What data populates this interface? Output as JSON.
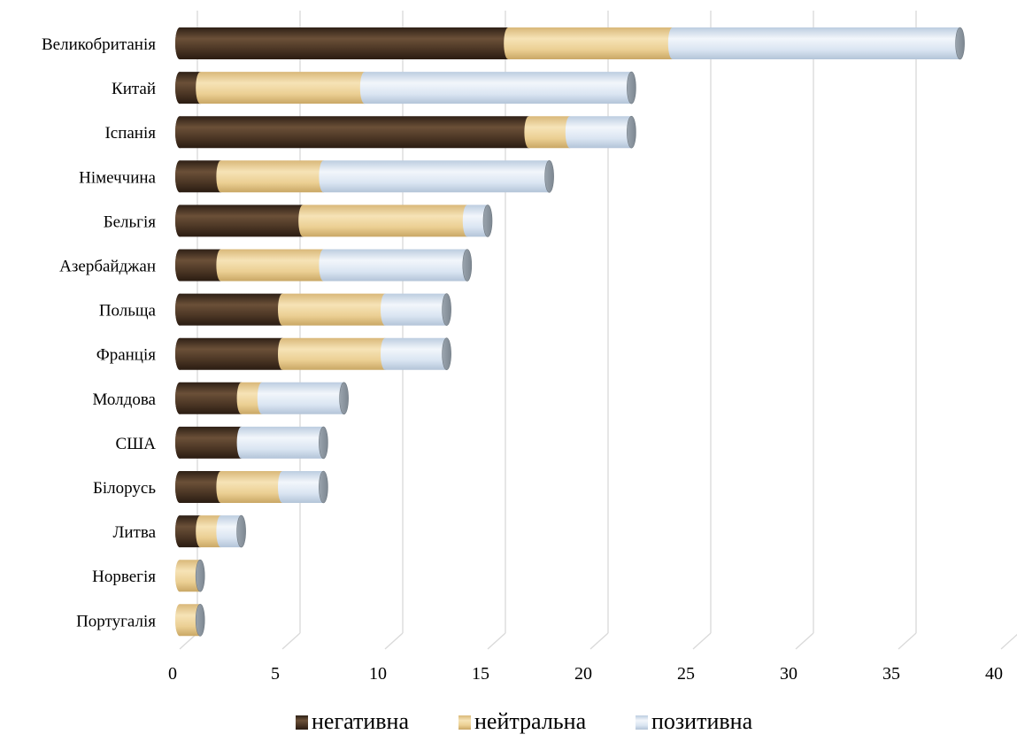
{
  "chart_data": {
    "type": "bar",
    "orientation": "horizontal",
    "stacked": true,
    "style": "3d-cylinder",
    "categories": [
      "Великобританія",
      "Китай",
      "Іспанія",
      "Німеччина",
      "Бельгія",
      "Азербайджан",
      "Польща",
      "Франція",
      "Молдова",
      "США",
      "Білорусь",
      "Литва",
      "Норвегія",
      "Португалія"
    ],
    "series": [
      {
        "name": "негативна",
        "color": "#4a3524",
        "values": [
          16,
          1,
          17,
          2,
          6,
          2,
          5,
          5,
          3,
          3,
          2,
          1,
          0,
          0
        ]
      },
      {
        "name": "нейтральна",
        "color": "#ebcf93",
        "values": [
          8,
          8,
          2,
          5,
          8,
          5,
          5,
          5,
          1,
          0,
          3,
          1,
          1,
          1
        ]
      },
      {
        "name": "позитивна",
        "color": "#d6e3f1",
        "values": [
          14,
          13,
          3,
          11,
          1,
          7,
          3,
          3,
          4,
          4,
          2,
          1,
          0,
          0
        ]
      }
    ],
    "xlim": [
      0,
      40
    ],
    "xticks": [
      "0",
      "5",
      "10",
      "15",
      "20",
      "25",
      "30",
      "35",
      "40"
    ],
    "grid": true,
    "legend_position": "bottom"
  }
}
